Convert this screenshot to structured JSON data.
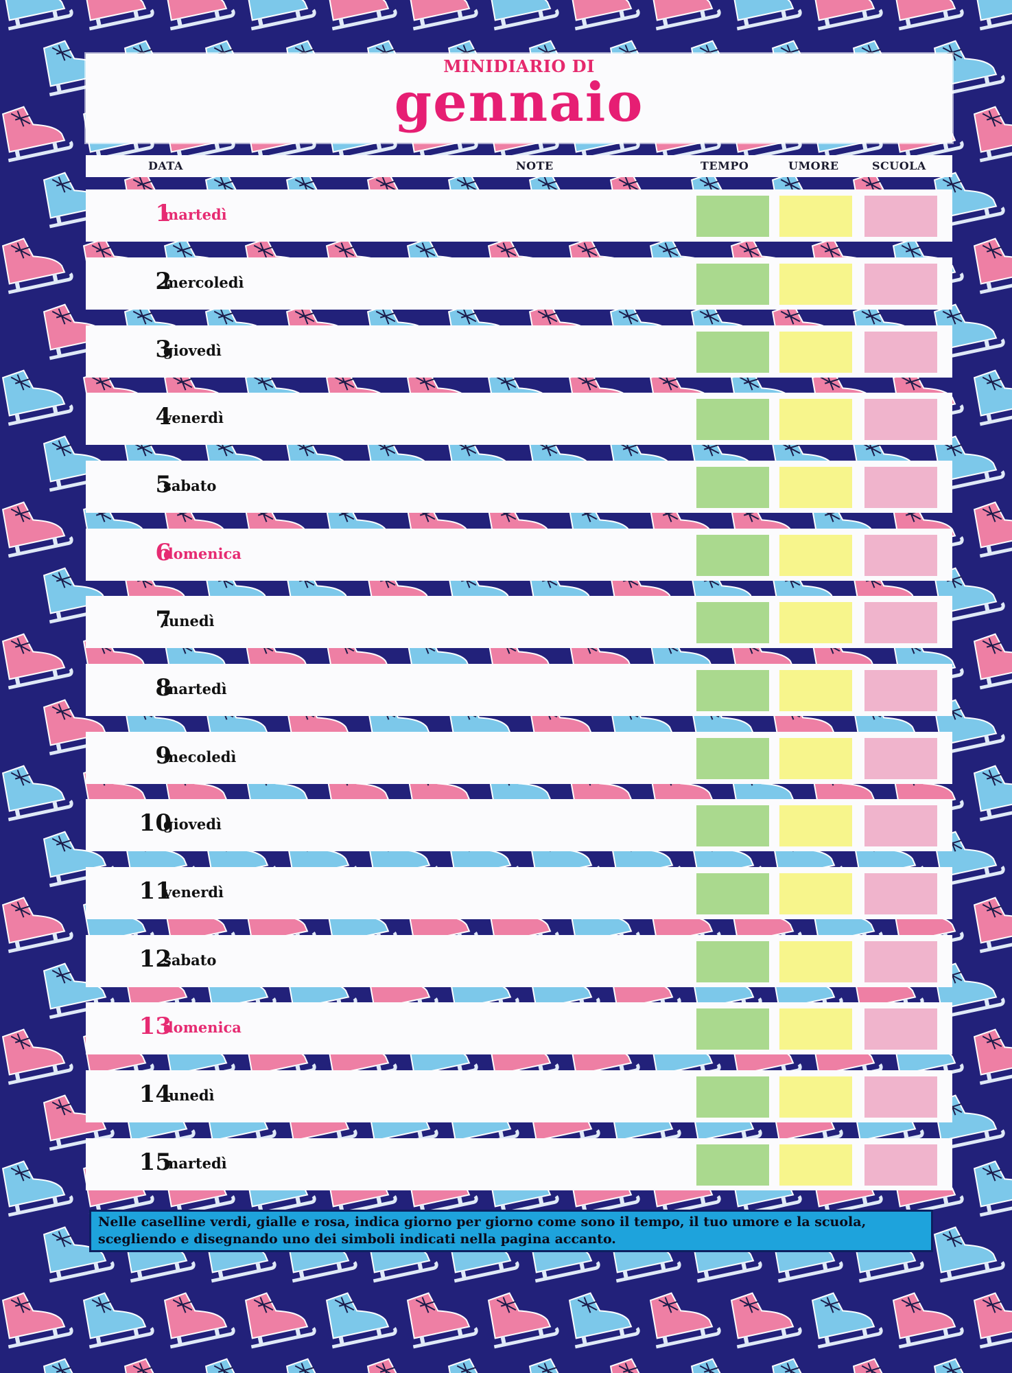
{
  "header": {
    "supertitle": "MINIDIARIO DI",
    "title": "gennaio"
  },
  "columns": {
    "data": "DATA",
    "note": "NOTE",
    "tempo": "TEMPO",
    "umore": "UMORE",
    "scuola": "SCUOLA"
  },
  "days": [
    {
      "num": "1",
      "name": "martedì",
      "holiday": true
    },
    {
      "num": "2",
      "name": "mercoledì",
      "holiday": false
    },
    {
      "num": "3",
      "name": "giovedì",
      "holiday": false
    },
    {
      "num": "4",
      "name": "venerdì",
      "holiday": false
    },
    {
      "num": "5",
      "name": "sabato",
      "holiday": false
    },
    {
      "num": "6",
      "name": "domenica",
      "holiday": true
    },
    {
      "num": "7",
      "name": "lunedì",
      "holiday": false
    },
    {
      "num": "8",
      "name": "martedì",
      "holiday": false
    },
    {
      "num": "9",
      "name": "mecoledì",
      "holiday": false
    },
    {
      "num": "10",
      "name": "giovedì",
      "holiday": false
    },
    {
      "num": "11",
      "name": "venerdì",
      "holiday": false
    },
    {
      "num": "12",
      "name": "sabato",
      "holiday": false
    },
    {
      "num": "13",
      "name": "domenica",
      "holiday": true
    },
    {
      "num": "14",
      "name": "lunedì",
      "holiday": false
    },
    {
      "num": "15",
      "name": "martedì",
      "holiday": false
    }
  ],
  "instructions": "Nelle caselline verdi, gialle e rosa, indica giorno per giorno come sono il tempo, il tuo umore e la scuola, scegliendo e disegnando uno dei simboli indicati nella pagina accanto.",
  "colors": {
    "background": "#22217a",
    "skate_pink": "#ee7fa4",
    "skate_blue": "#7cc8ea",
    "accent": "#e61e73",
    "tempo_box": "#aad98e",
    "umore_box": "#f7f58c",
    "scuola_box": "#f0b4cc",
    "instructions_bg": "#1ea3dc"
  },
  "icons": {
    "background": "ice-skate-icon"
  }
}
